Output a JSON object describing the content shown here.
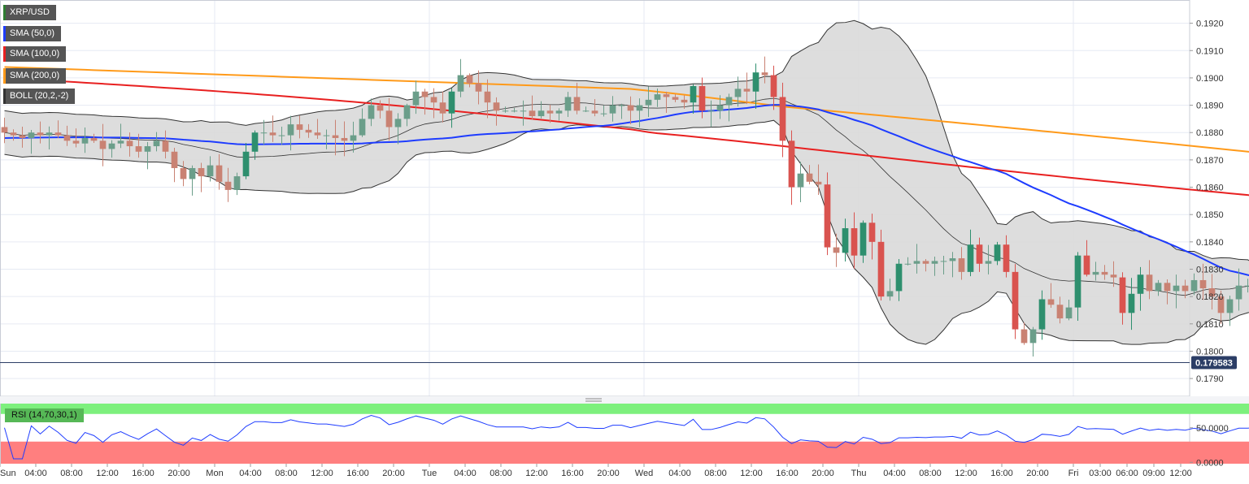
{
  "indicators": [
    {
      "label": "XRP/USD",
      "color": "#2e7d32"
    },
    {
      "label": "SMA (50,0)",
      "color": "#1e3cff"
    },
    {
      "label": "SMA (100,0)",
      "color": "#e82020"
    },
    {
      "label": "SMA (200,0)",
      "color": "#ff9a1a"
    },
    {
      "label": "BOLL (20,2,-2)",
      "color": "#333333"
    }
  ],
  "rsi_label": "RSI (14,70,30,1)",
  "colors": {
    "bull": "#6b9e8a",
    "bear": "#c98273",
    "strong_bull": "#2e8f6e",
    "strong_bear": "#d9534f",
    "sma50": "#1e3cff",
    "sma100": "#e82020",
    "sma200": "#ff9a1a",
    "band_fill": "#d9d9d9",
    "band_line": "#333333",
    "rsi_line": "#1e3cff",
    "rsi_over": "#7df07d",
    "rsi_under": "#ff7f7f",
    "price_line": "#2c3e66"
  },
  "chart_data": {
    "type": "candlestick",
    "symbol": "XRP/USD",
    "last_price": 0.179583,
    "last_price_label": "0.179583",
    "y_ticks": [
      "0.1790",
      "0.1800",
      "0.1810",
      "0.1820",
      "0.1830",
      "0.1840",
      "0.1850",
      "0.1860",
      "0.1870",
      "0.1880",
      "0.1890",
      "0.1900",
      "0.1910",
      "0.1920"
    ],
    "y_values": [
      0.179,
      0.18,
      0.181,
      0.182,
      0.183,
      0.184,
      0.185,
      0.186,
      0.187,
      0.188,
      0.189,
      0.19,
      0.191,
      0.192
    ],
    "ylim": [
      0.17835,
      0.19285
    ],
    "x_ticks": [
      "Sun",
      "04:00",
      "08:00",
      "12:00",
      "16:00",
      "20:00",
      "Mon",
      "04:00",
      "08:00",
      "12:00",
      "16:00",
      "20:00",
      "Tue",
      "04:00",
      "08:00",
      "12:00",
      "16:00",
      "20:00",
      "Wed",
      "04:00",
      "08:00",
      "12:00",
      "16:00",
      "20:00",
      "Thu",
      "04:00",
      "08:00",
      "12:00",
      "16:00",
      "20:00",
      "Fri",
      "03:00",
      "06:00",
      "09:00",
      "12:00"
    ],
    "x_tick_hours": [
      0,
      4,
      8,
      12,
      16,
      20,
      24,
      28,
      32,
      36,
      40,
      44,
      48,
      52,
      56,
      60,
      64,
      68,
      72,
      76,
      80,
      84,
      88,
      92,
      96,
      100,
      104,
      108,
      112,
      116,
      120,
      123,
      126,
      129,
      132
    ],
    "x_range_hours": [
      0,
      133
    ],
    "candle_interval_hours": 1,
    "closes": [
      0.188,
      0.1879,
      0.1878,
      0.188,
      0.1879,
      0.188,
      0.1879,
      0.1877,
      0.1876,
      0.1878,
      0.1877,
      0.1874,
      0.1876,
      0.1877,
      0.1875,
      0.1873,
      0.1875,
      0.1877,
      0.1873,
      0.1867,
      0.1863,
      0.1867,
      0.1864,
      0.1868,
      0.1862,
      0.1859,
      0.1864,
      0.1873,
      0.188,
      0.188,
      0.1879,
      0.1879,
      0.1883,
      0.1881,
      0.188,
      0.1879,
      0.1879,
      0.1878,
      0.1877,
      0.1879,
      0.1885,
      0.189,
      0.1888,
      0.1882,
      0.1885,
      0.189,
      0.1895,
      0.1893,
      0.1891,
      0.1887,
      0.1895,
      0.1901,
      0.1898,
      0.1895,
      0.1891,
      0.1888,
      0.1888,
      0.1888,
      0.1888,
      0.1886,
      0.1888,
      0.1887,
      0.1888,
      0.1893,
      0.1888,
      0.1888,
      0.1887,
      0.1887,
      0.189,
      0.189,
      0.1888,
      0.189,
      0.1892,
      0.1894,
      0.1893,
      0.1892,
      0.1891,
      0.1897,
      0.1888,
      0.1888,
      0.189,
      0.1893,
      0.1896,
      0.1895,
      0.1902,
      0.1901,
      0.1893,
      0.1877,
      0.186,
      0.1865,
      0.1862,
      0.1861,
      0.1838,
      0.1836,
      0.1845,
      0.1835,
      0.1847,
      0.184,
      0.182,
      0.1822,
      0.1832,
      0.1832,
      0.1833,
      0.1832,
      0.1833,
      0.1833,
      0.1834,
      0.1829,
      0.1839,
      0.1832,
      0.1833,
      0.1839,
      0.1829,
      0.1808,
      0.1803,
      0.1808,
      0.1819,
      0.1817,
      0.1812,
      0.1816,
      0.1835,
      0.1828,
      0.1829,
      0.1828,
      0.1827,
      0.1814,
      0.1821,
      0.1828,
      0.1822,
      0.1825,
      0.1822,
      0.1824,
      0.1822,
      0.1826,
      0.1823,
      0.182,
      0.1814,
      0.1819,
      0.1824,
      0.1824,
      0.1826,
      0.1827,
      0.1824,
      0.1813,
      0.1789,
      0.1796
    ],
    "sma50_end": 0.1827,
    "sma100_end": 0.1859,
    "sma200_end": 0.1872,
    "rsi_y_ticks": [
      "50.0000",
      "0.0000"
    ],
    "rsi_y_values": [
      50,
      0
    ],
    "rsi_ylim": [
      -2,
      85
    ],
    "rsi_overbought": 70,
    "rsi_oversold": 30
  }
}
